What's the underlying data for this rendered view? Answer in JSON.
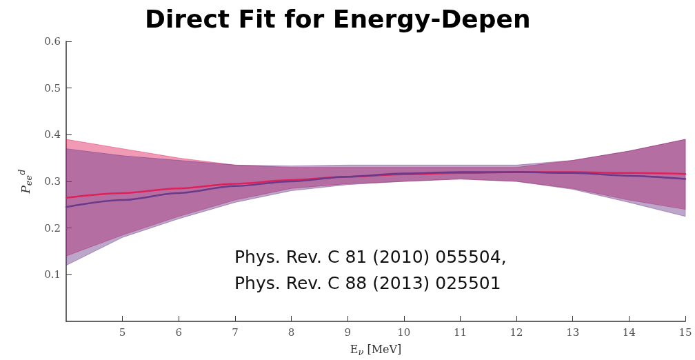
{
  "chart_data": {
    "type": "line",
    "title": "Direct Fit for Energy-Depen",
    "xlabel": "E$_{ν}$ [MeV]",
    "ylabel": "P$_{ee}$$^{d}$",
    "annotations": [
      "Phys. Rev. C 81 (2010) 055504,",
      "Phys. Rev. C 88 (2013) 025501"
    ],
    "x": [
      4,
      5,
      6,
      7,
      8,
      9,
      10,
      11,
      12,
      13,
      14,
      15
    ],
    "series": [
      {
        "color": "#e0205a",
        "values": [
          0.265,
          0.275,
          0.285,
          0.295,
          0.303,
          0.31,
          0.315,
          0.318,
          0.32,
          0.32,
          0.318,
          0.316
        ],
        "lower": [
          0.14,
          0.185,
          0.225,
          0.26,
          0.285,
          0.295,
          0.3,
          0.305,
          0.3,
          0.285,
          0.26,
          0.24
        ],
        "upper": [
          0.39,
          0.37,
          0.35,
          0.335,
          0.33,
          0.33,
          0.33,
          0.33,
          0.33,
          0.345,
          0.365,
          0.39
        ]
      },
      {
        "color": "#6a3a8a",
        "values": [
          0.245,
          0.26,
          0.275,
          0.29,
          0.3,
          0.31,
          0.317,
          0.32,
          0.32,
          0.318,
          0.312,
          0.305
        ],
        "lower": [
          0.12,
          0.18,
          0.22,
          0.255,
          0.28,
          0.293,
          0.3,
          0.305,
          0.3,
          0.283,
          0.255,
          0.225
        ],
        "upper": [
          0.37,
          0.355,
          0.345,
          0.335,
          0.333,
          0.335,
          0.335,
          0.335,
          0.335,
          0.345,
          0.365,
          0.39
        ]
      }
    ],
    "xlim": [
      4,
      15
    ],
    "xticks": [
      5,
      6,
      7,
      8,
      9,
      10,
      11,
      12,
      13,
      14,
      15
    ],
    "ylim": [
      0,
      0.6
    ],
    "yticks": [
      0.1,
      0.2,
      0.3,
      0.4,
      0.5,
      0.6
    ],
    "grid": false,
    "marker": "none",
    "line_style": "solid"
  }
}
